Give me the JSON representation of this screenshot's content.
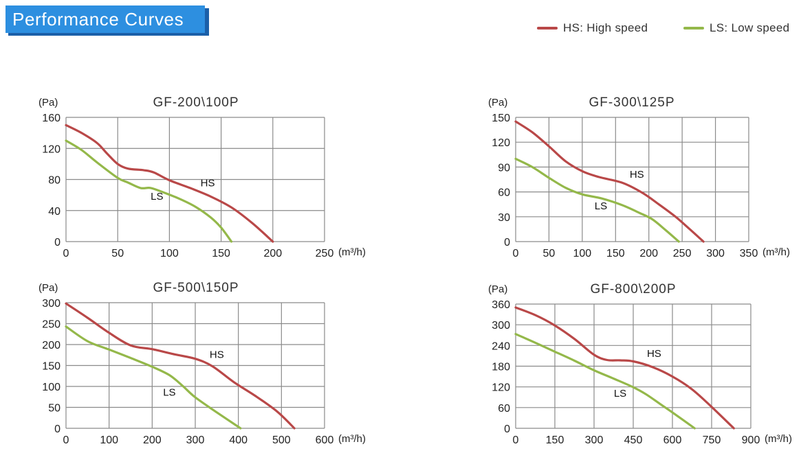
{
  "header": {
    "title": "Performance Curves"
  },
  "legend": [
    {
      "label": "HS: High speed",
      "color": "#b94848"
    },
    {
      "label": "LS: Low speed",
      "color": "#94b84a"
    }
  ],
  "colors": {
    "hs": "#b94848",
    "ls": "#94b84a",
    "grid": "#8a8a8a",
    "banner": "#2d8fe0"
  },
  "chart_data": [
    {
      "type": "line",
      "title": "GF-200\\100P",
      "ylabel": "(Pa)",
      "xunit": "(m³/h)",
      "xlim": [
        0,
        250
      ],
      "ylim": [
        0,
        160
      ],
      "xticks": [
        0,
        50,
        100,
        150,
        200,
        250
      ],
      "yticks": [
        0,
        40,
        80,
        120,
        160
      ],
      "grid": true,
      "series": [
        {
          "name": "HS",
          "color": "#b94848",
          "label_at": [
            137,
            71
          ],
          "points": [
            [
              0,
              150
            ],
            [
              15,
              140
            ],
            [
              30,
              127
            ],
            [
              40,
              113
            ],
            [
              50,
              100
            ],
            [
              60,
              94
            ],
            [
              75,
              92
            ],
            [
              85,
              89
            ],
            [
              100,
              79
            ],
            [
              120,
              69
            ],
            [
              140,
              58
            ],
            [
              160,
              44
            ],
            [
              180,
              24
            ],
            [
              200,
              0
            ]
          ]
        },
        {
          "name": "LS",
          "color": "#94b84a",
          "label_at": [
            88,
            54
          ],
          "points": [
            [
              0,
              130
            ],
            [
              15,
              118
            ],
            [
              30,
              102
            ],
            [
              50,
              82
            ],
            [
              60,
              76
            ],
            [
              72,
              69
            ],
            [
              82,
              69
            ],
            [
              95,
              63
            ],
            [
              110,
              55
            ],
            [
              125,
              45
            ],
            [
              140,
              31
            ],
            [
              150,
              18
            ],
            [
              160,
              0
            ]
          ]
        }
      ]
    },
    {
      "type": "line",
      "title": "GF-300\\125P",
      "ylabel": "(Pa)",
      "xunit": "(m³/h)",
      "xlim": [
        0,
        350
      ],
      "ylim": [
        0,
        150
      ],
      "xticks": [
        0,
        50,
        100,
        150,
        200,
        250,
        300,
        350
      ],
      "yticks": [
        0,
        30,
        60,
        90,
        120,
        150
      ],
      "grid": true,
      "series": [
        {
          "name": "HS",
          "color": "#b94848",
          "label_at": [
            182,
            77
          ],
          "points": [
            [
              0,
              145
            ],
            [
              25,
              132
            ],
            [
              50,
              115
            ],
            [
              75,
              97
            ],
            [
              100,
              85
            ],
            [
              125,
              78
            ],
            [
              160,
              71
            ],
            [
              190,
              59
            ],
            [
              215,
              45
            ],
            [
              240,
              30
            ],
            [
              260,
              16
            ],
            [
              282,
              0
            ]
          ]
        },
        {
          "name": "LS",
          "color": "#94b84a",
          "label_at": [
            128,
            39
          ],
          "points": [
            [
              0,
              100
            ],
            [
              25,
              90
            ],
            [
              50,
              77
            ],
            [
              75,
              65
            ],
            [
              100,
              57
            ],
            [
              130,
              52
            ],
            [
              160,
              44
            ],
            [
              185,
              35
            ],
            [
              205,
              27
            ],
            [
              225,
              14
            ],
            [
              245,
              0
            ]
          ]
        }
      ]
    },
    {
      "type": "line",
      "title": "GF-500\\150P",
      "ylabel": "(Pa)",
      "xunit": "(m³/h)",
      "xlim": [
        0,
        600
      ],
      "ylim": [
        0,
        300
      ],
      "xticks": [
        0,
        100,
        200,
        300,
        400,
        500,
        600
      ],
      "yticks": [
        0,
        50,
        100,
        150,
        200,
        250,
        300
      ],
      "grid": true,
      "series": [
        {
          "name": "HS",
          "color": "#b94848",
          "label_at": [
            350,
            168
          ],
          "points": [
            [
              0,
              298
            ],
            [
              50,
              264
            ],
            [
              100,
              228
            ],
            [
              150,
              198
            ],
            [
              200,
              189
            ],
            [
              250,
              177
            ],
            [
              300,
              166
            ],
            [
              340,
              148
            ],
            [
              390,
              110
            ],
            [
              440,
              77
            ],
            [
              490,
              40
            ],
            [
              530,
              0
            ]
          ]
        },
        {
          "name": "LS",
          "color": "#94b84a",
          "label_at": [
            240,
            78
          ],
          "points": [
            [
              0,
              243
            ],
            [
              50,
              208
            ],
            [
              100,
              188
            ],
            [
              150,
              168
            ],
            [
              200,
              147
            ],
            [
              240,
              127
            ],
            [
              270,
              102
            ],
            [
              300,
              74
            ],
            [
              350,
              38
            ],
            [
              405,
              0
            ]
          ]
        }
      ]
    },
    {
      "type": "line",
      "title": "GF-800\\200P",
      "ylabel": "(Pa)",
      "xunit": "(m³/h)",
      "xlim": [
        0,
        900
      ],
      "ylim": [
        0,
        360
      ],
      "xticks": [
        0,
        150,
        300,
        450,
        600,
        750,
        900
      ],
      "yticks": [
        0,
        60,
        120,
        180,
        240,
        300,
        360
      ],
      "grid": true,
      "series": [
        {
          "name": "HS",
          "color": "#b94848",
          "label_at": [
            530,
            207
          ],
          "points": [
            [
              0,
              350
            ],
            [
              75,
              328
            ],
            [
              150,
              298
            ],
            [
              225,
              259
            ],
            [
              300,
              213
            ],
            [
              350,
              198
            ],
            [
              400,
              197
            ],
            [
              450,
              194
            ],
            [
              525,
              177
            ],
            [
              600,
              150
            ],
            [
              675,
              113
            ],
            [
              750,
              62
            ],
            [
              835,
              0
            ]
          ]
        },
        {
          "name": "LS",
          "color": "#94b84a",
          "label_at": [
            400,
            91
          ],
          "points": [
            [
              0,
              273
            ],
            [
              75,
              248
            ],
            [
              150,
              222
            ],
            [
              225,
              196
            ],
            [
              300,
              168
            ],
            [
              375,
              144
            ],
            [
              450,
              119
            ],
            [
              500,
              98
            ],
            [
              550,
              72
            ],
            [
              600,
              46
            ],
            [
              650,
              19
            ],
            [
              685,
              0
            ]
          ]
        }
      ]
    }
  ]
}
